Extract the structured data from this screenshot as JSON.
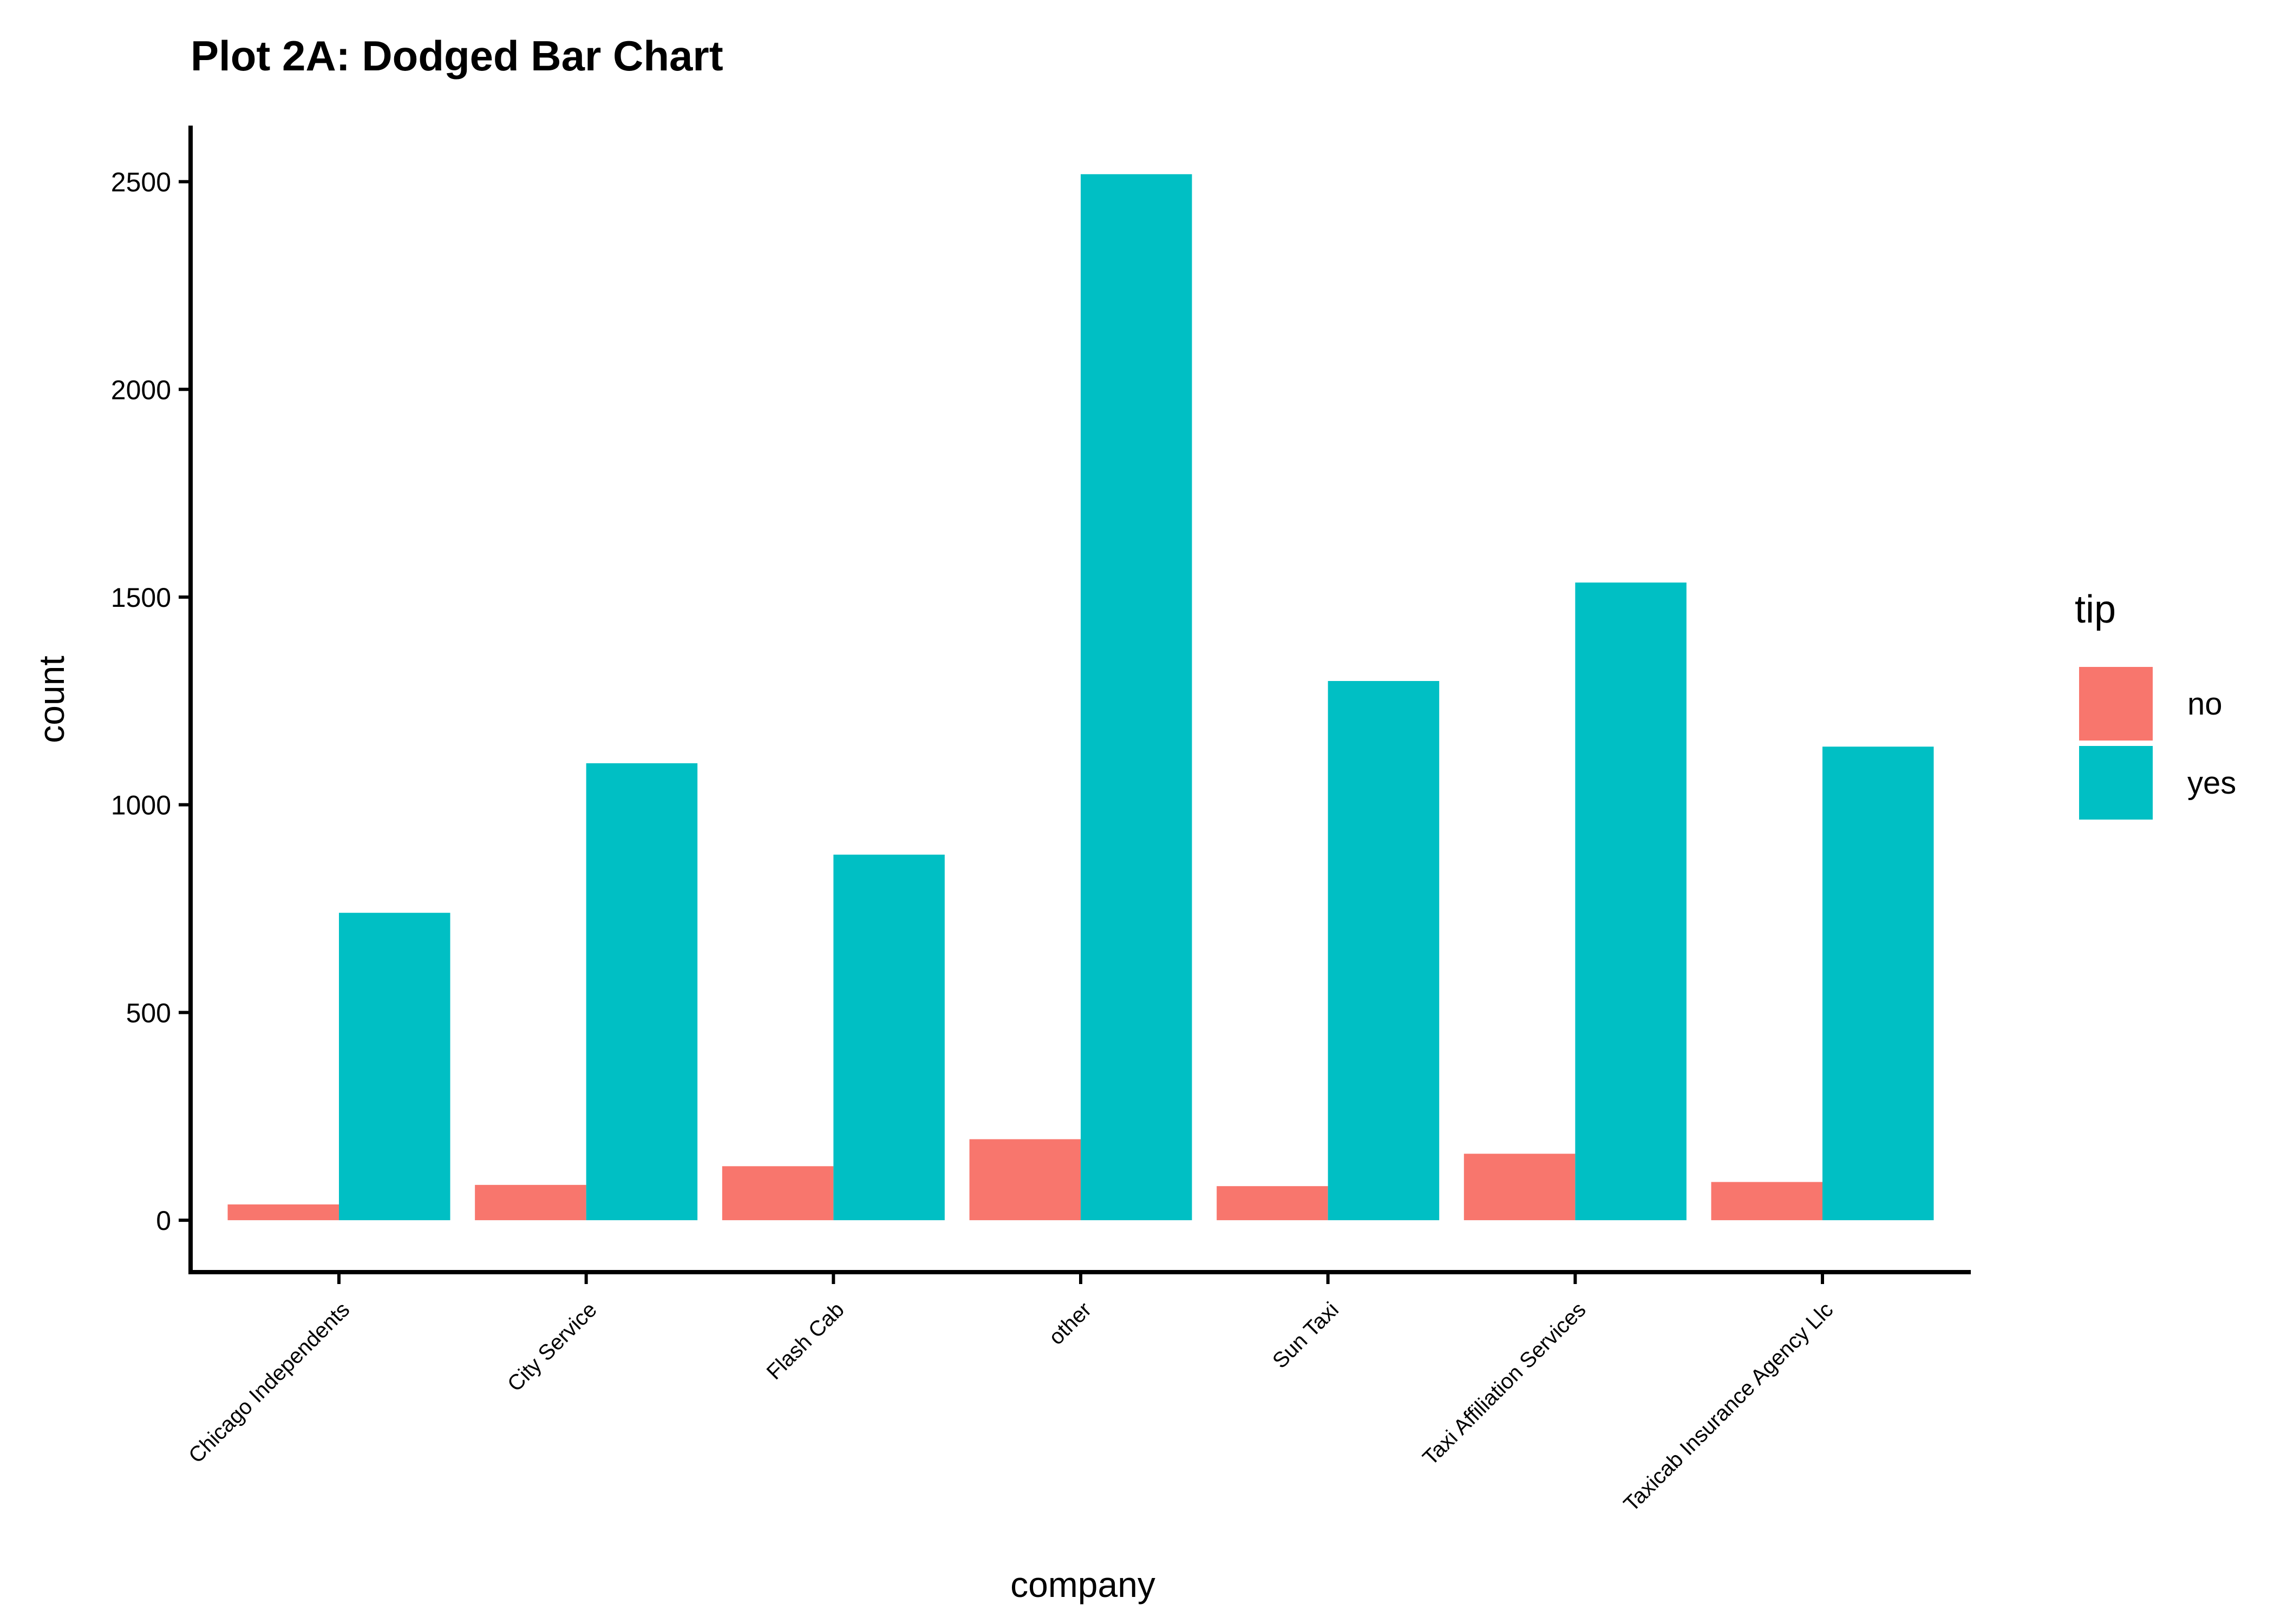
{
  "chart_data": {
    "type": "bar",
    "bar_mode": "dodge",
    "title": "Plot 2A: Dodged Bar Chart",
    "xlabel": "company",
    "ylabel": "count",
    "ylim": [
      -125,
      2635
    ],
    "yticks": [
      0,
      500,
      1000,
      1500,
      2000,
      2500
    ],
    "grid": false,
    "legend": {
      "title": "tip",
      "placement": "right"
    },
    "categories": [
      "Chicago Independents",
      "City Service",
      "Flash Cab",
      "other",
      "Sun Taxi",
      "Taxi Affiliation Services",
      "Taxicab Insurance Agency Llc"
    ],
    "series": [
      {
        "name": "no",
        "color": "#F8766D",
        "values": [
          38,
          85,
          130,
          195,
          82,
          160,
          92
        ]
      },
      {
        "name": "yes",
        "color": "#00BFC4",
        "values": [
          740,
          1100,
          880,
          2518,
          1298,
          1535,
          1140
        ]
      }
    ]
  }
}
